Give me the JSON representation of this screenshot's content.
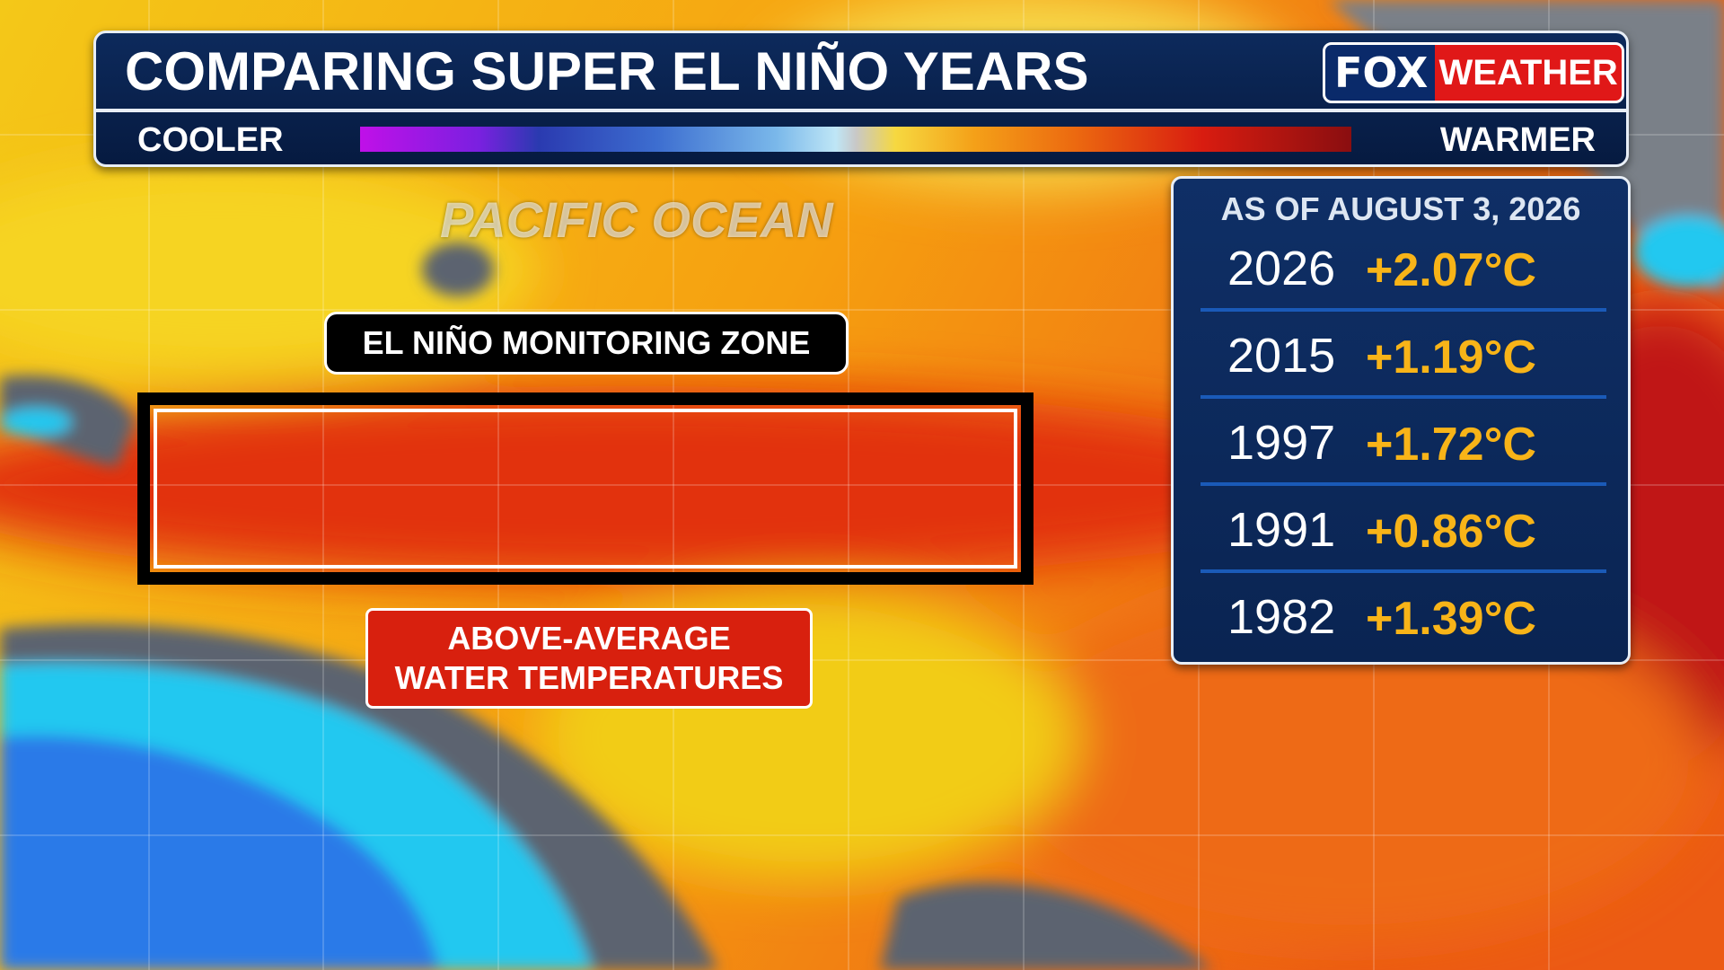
{
  "header": {
    "title": "COMPARING SUPER EL NIÑO YEARS",
    "logo": {
      "left": "FOX",
      "right": "WEATHER"
    }
  },
  "legend": {
    "low": "COOLER",
    "high": "WARMER"
  },
  "map": {
    "ocean_label": "PACIFIC OCEAN",
    "zone_label": "EL NIÑO MONITORING ZONE",
    "callout": [
      "ABOVE-AVERAGE",
      "WATER TEMPERATURES"
    ]
  },
  "table": {
    "title": "AS OF AUGUST 3, 2026",
    "rows": [
      [
        "2026",
        "+2.07°C"
      ],
      [
        "2015",
        "+1.19°C"
      ],
      [
        "1997",
        "+1.72°C"
      ],
      [
        "1991",
        "+0.86°C"
      ],
      [
        "1982",
        "+1.39°C"
      ]
    ]
  }
}
